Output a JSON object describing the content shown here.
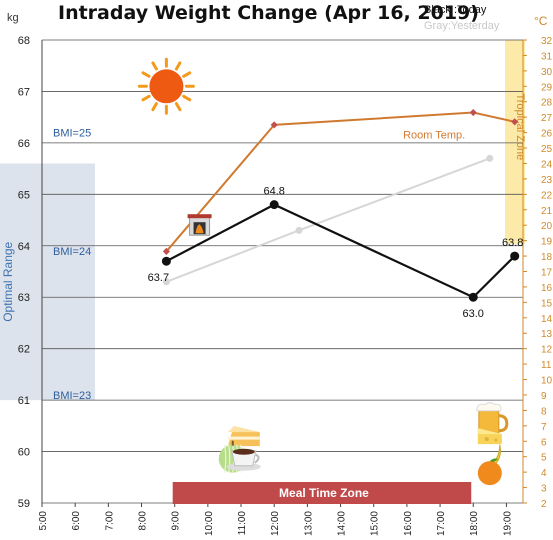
{
  "header": {
    "title": "Intraday Weight Change (Apr 16, 2019)",
    "legend_today": "Black :Today",
    "legend_yesterday": "Gray:Yesterday",
    "y_unit": "kg",
    "y2_unit": "°C"
  },
  "chart_data": {
    "type": "line",
    "title": "Intraday Weight Change (Apr 16, 2019)",
    "xlabel": "",
    "ylabel": "",
    "x_ticks": [
      "5:00",
      "6:00",
      "7:00",
      "8:00",
      "9:00",
      "10:00",
      "11:00",
      "12:00",
      "13:00",
      "14:00",
      "15:00",
      "16:00",
      "17:00",
      "18:00",
      "19:00"
    ],
    "xlim": [
      "5:00",
      "19:30"
    ],
    "ylim": [
      59,
      68
    ],
    "y_ticks": [
      59,
      60,
      61,
      62,
      63,
      64,
      65,
      66,
      67,
      68
    ],
    "y2_ticks": [
      2,
      3,
      4,
      5,
      6,
      7,
      8,
      9,
      10,
      11,
      12,
      13,
      14,
      15,
      16,
      17,
      18,
      19,
      20,
      21,
      22,
      23,
      24,
      25,
      26,
      27,
      28,
      29,
      30,
      31,
      32
    ],
    "y2lim": [
      2,
      32
    ],
    "grid": true,
    "series": [
      {
        "name": "Today",
        "color": "#111111",
        "axis": "left",
        "points": [
          {
            "x": "8:45",
            "y": 63.7
          },
          {
            "x": "12:00",
            "y": 64.8
          },
          {
            "x": "18:00",
            "y": 63.0
          },
          {
            "x": "19:15",
            "y": 63.8
          }
        ],
        "labels": [
          "63.7",
          "64.8",
          "63.0",
          "63.8"
        ]
      },
      {
        "name": "Yesterday",
        "color": "#d6d6d6",
        "axis": "left",
        "points": [
          {
            "x": "8:45",
            "y": 63.3
          },
          {
            "x": "12:45",
            "y": 64.3
          },
          {
            "x": "18:30",
            "y": 65.7
          }
        ]
      },
      {
        "name": "Room Temp.",
        "color": "#d07a30",
        "axis": "right",
        "points": [
          {
            "x": "8:45",
            "y": 18.3
          },
          {
            "x": "12:00",
            "y": 26.5
          },
          {
            "x": "18:00",
            "y": 27.3
          },
          {
            "x": "19:15",
            "y": 26.7
          }
        ]
      }
    ],
    "optimal_band": {
      "label": "Optimal Range",
      "from": 61,
      "to": 65.6
    },
    "bmi_marks": [
      {
        "label": "BMI=25",
        "y": 66.2
      },
      {
        "label": "BMI=24",
        "y": 63.9
      },
      {
        "label": "BMI=23",
        "y": 61.1
      }
    ],
    "tropical_band": {
      "label": "Tropical Zone",
      "from": 18.8,
      "to": 32
    },
    "room_temp_label": "Room Temp.",
    "meal_zone": {
      "label": "Meal Time Zone",
      "from": "9:00",
      "to": "18:00"
    }
  },
  "icons": [
    {
      "name": "sun-icon",
      "time": "8:45",
      "y": 67.1
    },
    {
      "name": "fireplace-icon",
      "time": "9:45",
      "y": 64.4
    },
    {
      "name": "cake-icon",
      "time": "11:05",
      "y": 60.3
    },
    {
      "name": "melon-icon",
      "time": "10:45",
      "y": 59.9
    },
    {
      "name": "coffee-icon",
      "time": "11:05",
      "y": 59.9
    },
    {
      "name": "beer-icon",
      "time": "18:30",
      "y": 60.6
    },
    {
      "name": "cheese-icon",
      "time": "18:30",
      "y": 60.3
    },
    {
      "name": "banana-icon",
      "time": "18:30",
      "y": 59.9
    },
    {
      "name": "orange-icon",
      "time": "18:30",
      "y": 59.6
    }
  ]
}
